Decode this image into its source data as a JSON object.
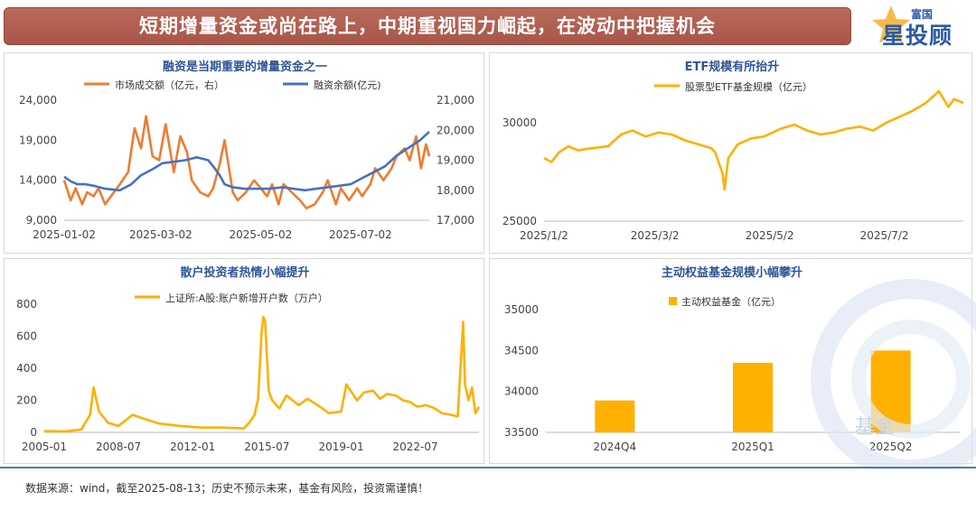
{
  "header": {
    "banner_text": "短期增量资金或尚在路上，中期重视国力崛起，在波动中把握机会",
    "logo_top": "富国",
    "logo_main": "星投顾",
    "watermark": "基金"
  },
  "colors": {
    "orange": "#ed7d31",
    "blue": "#4472c4",
    "gold": "#ffb000",
    "title": "#2f5597",
    "banner": "#b0604f"
  },
  "footer": {
    "text": "数据来源：wind，截至2025-08-13；历史不预示未来，基金有风险，投资需谨慎！"
  },
  "chart_data": [
    {
      "type": "line",
      "title": "融资是当期重要的增量资金之一",
      "x_ticks": [
        "2025-01-02",
        "2025-03-02",
        "2025-05-02",
        "2025-07-02"
      ],
      "y_left": {
        "ticks": [
          "9,000",
          "14,000",
          "19,000",
          "24,000"
        ],
        "ylim": [
          9000,
          24000
        ]
      },
      "y_right": {
        "ticks": [
          "17,000",
          "18,000",
          "19,000",
          "20,000",
          "21,000"
        ],
        "ylim": [
          17000,
          21000
        ]
      },
      "xlim": [
        "2025-01-02",
        "2025-08-13"
      ],
      "series": [
        {
          "name": "市场成交额（亿元，右）",
          "axis": "left",
          "color": "#ed7d31",
          "x": [
            "2025-01-02",
            "2025-01-06",
            "2025-01-09",
            "2025-01-13",
            "2025-01-16",
            "2025-01-20",
            "2025-01-23",
            "2025-01-27",
            "2025-02-05",
            "2025-02-10",
            "2025-02-14",
            "2025-02-18",
            "2025-02-21",
            "2025-02-25",
            "2025-03-01",
            "2025-03-05",
            "2025-03-10",
            "2025-03-14",
            "2025-03-18",
            "2025-03-21",
            "2025-03-26",
            "2025-03-31",
            "2025-04-03",
            "2025-04-07",
            "2025-04-10",
            "2025-04-15",
            "2025-04-18",
            "2025-04-23",
            "2025-04-28",
            "2025-05-06",
            "2025-05-09",
            "2025-05-13",
            "2025-05-16",
            "2025-05-21",
            "2025-05-26",
            "2025-05-30",
            "2025-06-04",
            "2025-06-09",
            "2025-06-12",
            "2025-06-17",
            "2025-06-20",
            "2025-06-25",
            "2025-06-30",
            "2025-07-03",
            "2025-07-08",
            "2025-07-11",
            "2025-07-16",
            "2025-07-21",
            "2025-07-24",
            "2025-07-29",
            "2025-08-01",
            "2025-08-05",
            "2025-08-08",
            "2025-08-11",
            "2025-08-13"
          ],
          "y": [
            14000,
            11500,
            13000,
            11000,
            12500,
            12000,
            13000,
            11000,
            13500,
            15000,
            20500,
            18000,
            22000,
            17000,
            16500,
            21000,
            15000,
            19500,
            17500,
            14000,
            12500,
            12000,
            13000,
            16000,
            19000,
            12500,
            11500,
            12500,
            14000,
            12000,
            13500,
            11000,
            13500,
            12500,
            11500,
            10500,
            11000,
            12500,
            14000,
            11000,
            13000,
            11500,
            13000,
            12000,
            13500,
            15500,
            14000,
            15500,
            17000,
            18000,
            16500,
            19500,
            15500,
            18500,
            17000
          ]
        },
        {
          "name": "融资余额(亿元)",
          "axis": "right",
          "color": "#4472c4",
          "x": [
            "2025-01-02",
            "2025-01-06",
            "2025-01-10",
            "2025-01-15",
            "2025-01-20",
            "2025-01-27",
            "2025-02-05",
            "2025-02-12",
            "2025-02-18",
            "2025-02-25",
            "2025-03-03",
            "2025-03-10",
            "2025-03-17",
            "2025-03-24",
            "2025-03-31",
            "2025-04-03",
            "2025-04-07",
            "2025-04-10",
            "2025-04-15",
            "2025-04-22",
            "2025-04-29",
            "2025-05-08",
            "2025-05-15",
            "2025-05-22",
            "2025-05-29",
            "2025-06-05",
            "2025-06-12",
            "2025-06-19",
            "2025-06-26",
            "2025-07-03",
            "2025-07-10",
            "2025-07-17",
            "2025-07-24",
            "2025-07-31",
            "2025-08-07",
            "2025-08-13"
          ],
          "y": [
            18450,
            18300,
            18200,
            18200,
            18150,
            18050,
            18000,
            18200,
            18500,
            18700,
            18900,
            18950,
            19000,
            19100,
            19000,
            18800,
            18500,
            18200,
            18100,
            18050,
            18050,
            18050,
            18100,
            18050,
            18000,
            18050,
            18100,
            18150,
            18200,
            18400,
            18600,
            18800,
            19150,
            19400,
            19650,
            19950
          ]
        }
      ]
    },
    {
      "type": "line",
      "title": "ETF规模有所抬升",
      "x_ticks": [
        "2025/1/2",
        "2025/3/2",
        "2025/5/2",
        "2025/7/2"
      ],
      "y_ticks": [
        "25000",
        "30000"
      ],
      "ylim": [
        25000,
        31600
      ],
      "xlim": [
        "2025/1/2",
        "2025/8/13"
      ],
      "series": [
        {
          "name": "股票型ETF基金规模（亿元）",
          "color": "#ffb000",
          "x": [
            "2025/1/2",
            "2025/1/6",
            "2025/1/10",
            "2025/1/15",
            "2025/1/20",
            "2025/1/27",
            "2025/2/5",
            "2025/2/12",
            "2025/2/18",
            "2025/2/25",
            "2025/3/4",
            "2025/3/11",
            "2025/3/18",
            "2025/3/25",
            "2025/4/1",
            "2025/4/3",
            "2025/4/7",
            "2025/4/8",
            "2025/4/10",
            "2025/4/15",
            "2025/4/22",
            "2025/4/29",
            "2025/5/8",
            "2025/5/15",
            "2025/5/22",
            "2025/5/29",
            "2025/6/5",
            "2025/6/12",
            "2025/6/19",
            "2025/6/26",
            "2025/7/3",
            "2025/7/10",
            "2025/7/17",
            "2025/7/24",
            "2025/7/31",
            "2025/8/5",
            "2025/8/8",
            "2025/8/13"
          ],
          "y": [
            28200,
            28000,
            28500,
            28800,
            28600,
            28700,
            28800,
            29400,
            29600,
            29300,
            29500,
            29400,
            29100,
            28900,
            28700,
            28500,
            27400,
            26600,
            28200,
            28900,
            29200,
            29300,
            29700,
            29900,
            29600,
            29400,
            29500,
            29700,
            29800,
            29600,
            30000,
            30300,
            30600,
            31000,
            31600,
            30800,
            31200,
            31000
          ]
        }
      ]
    },
    {
      "type": "line",
      "title": "散户投资者热情小幅提升",
      "x_ticks": [
        "2005-01",
        "2008-07",
        "2012-01",
        "2015-07",
        "2019-01",
        "2022-07"
      ],
      "y_ticks": [
        "0",
        "200",
        "400",
        "600",
        "800"
      ],
      "ylim": [
        0,
        800
      ],
      "xlim": [
        "2005-01",
        "2025-07"
      ],
      "series": [
        {
          "name": "上证所:A股:账户新增开户数（万户）",
          "color": "#ffb000",
          "x": [
            "2005-01",
            "2006-01",
            "2006-10",
            "2007-03",
            "2007-05",
            "2007-08",
            "2008-01",
            "2008-07",
            "2009-03",
            "2009-08",
            "2010-06",
            "2011-06",
            "2012-06",
            "2013-06",
            "2014-06",
            "2014-09",
            "2014-12",
            "2015-02",
            "2015-04",
            "2015-05",
            "2015-06",
            "2015-08",
            "2015-10",
            "2016-02",
            "2016-06",
            "2017-01",
            "2017-06",
            "2018-01",
            "2018-06",
            "2019-01",
            "2019-04",
            "2019-10",
            "2020-02",
            "2020-07",
            "2020-11",
            "2021-03",
            "2021-08",
            "2021-12",
            "2022-04",
            "2022-08",
            "2023-01",
            "2023-06",
            "2023-10",
            "2024-03",
            "2024-07",
            "2024-10",
            "2024-11",
            "2025-01",
            "2025-03",
            "2025-05",
            "2025-07"
          ],
          "y": [
            8,
            6,
            18,
            110,
            280,
            130,
            60,
            40,
            110,
            90,
            55,
            40,
            30,
            30,
            25,
            60,
            110,
            210,
            620,
            720,
            690,
            260,
            200,
            150,
            230,
            170,
            210,
            160,
            120,
            130,
            300,
            200,
            250,
            260,
            210,
            240,
            230,
            200,
            190,
            160,
            170,
            150,
            120,
            110,
            100,
            690,
            300,
            200,
            280,
            120,
            160
          ]
        }
      ]
    },
    {
      "type": "bar",
      "title": "主动权益基金规模小幅攀升",
      "categories": [
        "2024Q4",
        "2025Q1",
        "2025Q2"
      ],
      "y_ticks": [
        "33500",
        "34000",
        "34500",
        "35000"
      ],
      "ylim": [
        33500,
        35000
      ],
      "series": [
        {
          "name": "主动权益基金（亿元）",
          "color": "#ffb000",
          "values": [
            33890,
            34350,
            34500
          ]
        }
      ]
    }
  ]
}
